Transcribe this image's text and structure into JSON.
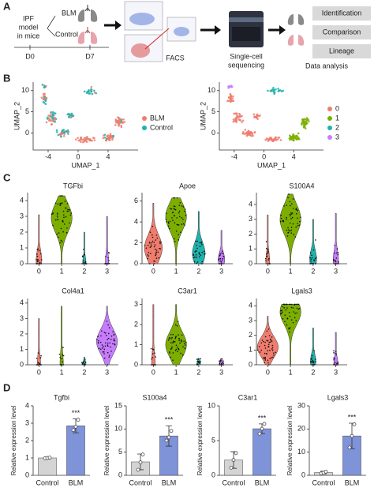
{
  "panel_labels": [
    "A",
    "B",
    "C",
    "D"
  ],
  "schematic": {
    "model": [
      "IPF",
      "model",
      "in mice"
    ],
    "groups": [
      "BLM",
      "Control"
    ],
    "days": [
      "D0",
      "D7"
    ],
    "facs": "FACS",
    "sequencing": [
      "Single-cell",
      "sequencing"
    ],
    "analysis": [
      "Identification",
      "Comparison",
      "Lineage"
    ],
    "analysis_title": "Data analysis"
  },
  "umap": [
    {
      "xlabel": "UMAP_1",
      "ylabel": "UMAP_2",
      "xlim": [
        -6,
        8
      ],
      "ylim": [
        -4,
        12
      ],
      "xticks": [
        -4,
        0,
        4
      ],
      "yticks": [
        0,
        5,
        10
      ],
      "legend": [
        {
          "name": "BLM",
          "color": "#f07c6e"
        },
        {
          "name": "Control",
          "color": "#1fb3ad"
        }
      ]
    },
    {
      "xlabel": "UMAP_1",
      "ylabel": "UMAP_2",
      "xlim": [
        -6,
        8
      ],
      "ylim": [
        -4,
        12
      ],
      "xticks": [
        -4,
        0,
        4
      ],
      "yticks": [
        0,
        5,
        10
      ],
      "legend": [
        {
          "name": "0",
          "color": "#f07c6e"
        },
        {
          "name": "1",
          "color": "#7cae00"
        },
        {
          "name": "2",
          "color": "#1fb3ad"
        },
        {
          "name": "3",
          "color": "#c77cff"
        }
      ]
    }
  ],
  "violins": {
    "categories": [
      "0",
      "1",
      "2",
      "3"
    ],
    "colors": [
      "#f07c6e",
      "#7cae00",
      "#1fb3ad",
      "#c77cff"
    ],
    "plots": [
      {
        "title": "TGFbi",
        "ylim": [
          0,
          4.5
        ],
        "yticks": [
          0,
          1,
          2,
          3,
          4
        ],
        "max": [
          3.1,
          4.3,
          2.0,
          3.0
        ],
        "median": [
          0.2,
          2.9,
          0.05,
          0.05
        ]
      },
      {
        "title": "Apoe",
        "ylim": [
          0,
          6.8
        ],
        "yticks": [
          0,
          2,
          4,
          6
        ],
        "max": [
          5.8,
          6.3,
          5.0,
          3.2
        ],
        "median": [
          1.5,
          4.5,
          1.0,
          0.4
        ]
      },
      {
        "title": "S100A4",
        "ylim": [
          0,
          4.8
        ],
        "yticks": [
          0,
          1,
          2,
          3,
          4
        ],
        "max": [
          3.3,
          4.7,
          3.0,
          3.4
        ],
        "median": [
          0.1,
          3.0,
          0.3,
          0.2
        ]
      },
      {
        "title": "Col4a1",
        "ylim": [
          0,
          4.3
        ],
        "yticks": [
          0,
          1,
          2,
          3,
          4
        ],
        "max": [
          3.0,
          3.8,
          0.5,
          3.8
        ],
        "median": [
          0.05,
          0.05,
          0.05,
          1.5
        ]
      },
      {
        "title": "C3ar1",
        "ylim": [
          0,
          3.3
        ],
        "yticks": [
          0,
          1,
          2,
          3
        ],
        "max": [
          3.0,
          3.0,
          0.3,
          0.3
        ],
        "median": [
          0.05,
          1.0,
          0.05,
          0.05
        ]
      },
      {
        "title": "Lgals3",
        "ylim": [
          0,
          4.5
        ],
        "yticks": [
          0,
          1,
          2,
          3,
          4
        ],
        "max": [
          3.3,
          4.1,
          2.5,
          2.2
        ],
        "median": [
          1.2,
          3.6,
          0.2,
          0.1
        ]
      }
    ]
  },
  "chart_data": [
    {
      "type": "bar",
      "title": "Tgfbi",
      "ylabel": "Relative expression level",
      "categories": [
        "Control",
        "BLM"
      ],
      "values": [
        1.0,
        2.85
      ],
      "errors": [
        0.05,
        0.4
      ],
      "points": [
        [
          0.98,
          1.0,
          1.02
        ],
        [
          2.6,
          2.8,
          3.2
        ]
      ],
      "colors": [
        "#d4d4d4",
        "#7f93d9"
      ],
      "ylim": [
        0,
        4
      ],
      "yticks": [
        0,
        1,
        2,
        3,
        4
      ],
      "annotation": "***"
    },
    {
      "type": "bar",
      "title": "S100a4",
      "ylabel": "Relative expression level",
      "categories": [
        "Control",
        "BLM"
      ],
      "values": [
        2.9,
        8.5
      ],
      "errors": [
        1.7,
        2.2
      ],
      "points": [
        [
          1.2,
          2.8,
          4.5
        ],
        [
          7.5,
          8.2,
          9.6
        ]
      ],
      "colors": [
        "#d4d4d4",
        "#7f93d9"
      ],
      "ylim": [
        0,
        15
      ],
      "yticks": [
        0,
        5,
        10,
        15
      ],
      "annotation": "***"
    },
    {
      "type": "bar",
      "title": "C3ar1",
      "ylabel": "Relative expression level",
      "categories": [
        "Control",
        "BLM"
      ],
      "values": [
        2.2,
        6.7
      ],
      "errors": [
        1.2,
        0.7
      ],
      "points": [
        [
          1.1,
          2.2,
          3.2
        ],
        [
          6.0,
          6.7,
          7.4
        ]
      ],
      "colors": [
        "#d4d4d4",
        "#7f93d9"
      ],
      "ylim": [
        0,
        10
      ],
      "yticks": [
        0,
        5,
        10
      ],
      "annotation": "***"
    },
    {
      "type": "bar",
      "title": "Lgals3",
      "ylabel": "Relative expression level",
      "categories": [
        "Control",
        "BLM"
      ],
      "values": [
        1.2,
        17
      ],
      "errors": [
        0.6,
        5.5
      ],
      "points": [
        [
          0.8,
          1.1,
          1.6
        ],
        [
          12,
          17,
          22
        ]
      ],
      "colors": [
        "#d4d4d4",
        "#7f93d9"
      ],
      "ylim": [
        0,
        30
      ],
      "yticks": [
        0,
        10,
        20,
        30
      ],
      "annotation": "***"
    }
  ]
}
